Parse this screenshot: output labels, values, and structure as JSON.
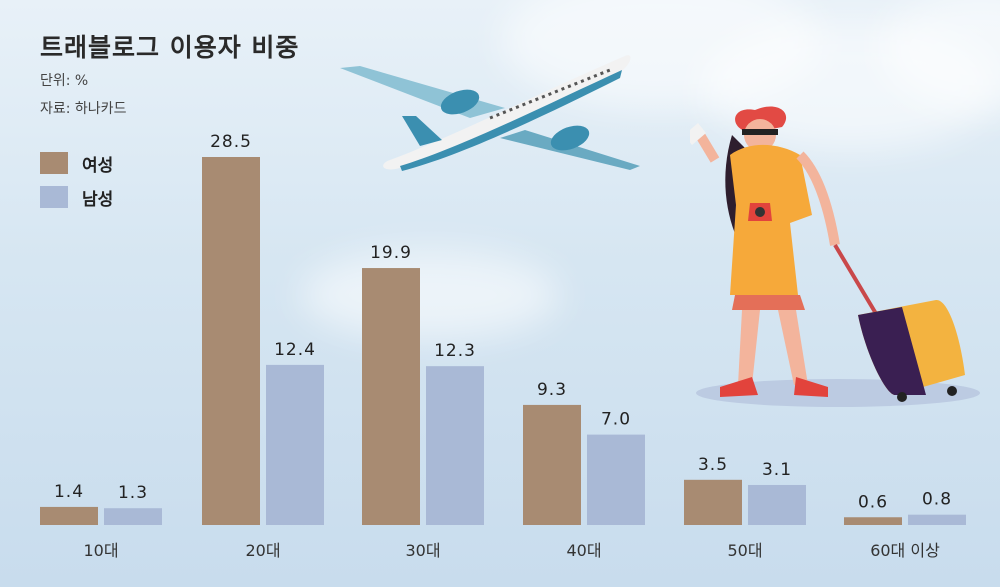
{
  "title": "트래블로그 이용자 비중",
  "unit": "단위: %",
  "source": "자료: 하나카드",
  "colors": {
    "female": "#a88b72",
    "male": "#a9b9d6"
  },
  "legend": [
    {
      "key": "female",
      "label": "여성"
    },
    {
      "key": "male",
      "label": "남성"
    }
  ],
  "chart_data": {
    "type": "bar",
    "title": "트래블로그 이용자 비중",
    "categories": [
      "10대",
      "20대",
      "30대",
      "40대",
      "50대",
      "60대 이상"
    ],
    "series": [
      {
        "name": "여성",
        "values": [
          1.4,
          28.5,
          19.9,
          9.3,
          3.5,
          0.6
        ]
      },
      {
        "name": "남성",
        "values": [
          1.3,
          12.4,
          12.3,
          7.0,
          3.1,
          0.8
        ]
      }
    ],
    "value_labels": [
      [
        "1.4",
        "28.5",
        "19.9",
        "9.3",
        "3.5",
        "0.6"
      ],
      [
        "1.3",
        "12.4",
        "12.3",
        "7.0",
        "3.1",
        "0.8"
      ]
    ],
    "ylim": [
      0,
      28.5
    ],
    "grid": false,
    "legend_position": "top-left"
  }
}
